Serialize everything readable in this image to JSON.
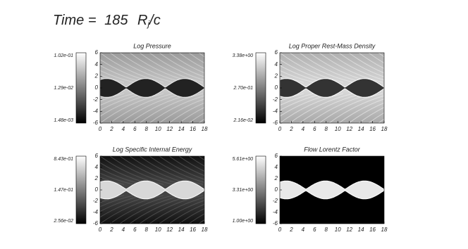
{
  "header": {
    "label": "Time =",
    "value": 185,
    "unit": "R",
    "unit_subscript": "j",
    "unit_suffix": "/c"
  },
  "panels": [
    {
      "title": "Log Pressure",
      "colorbar_labels": [
        "1.02e-01",
        "1.29e-02",
        "1.48e-03"
      ],
      "xticks": [
        0,
        2,
        4,
        6,
        8,
        10,
        12,
        14,
        16,
        18
      ],
      "yticks": [
        6,
        4,
        2,
        0,
        -2,
        -4,
        -6
      ]
    },
    {
      "title": "Log Proper Rest-Mass Density",
      "colorbar_labels": [
        "3.38e+00",
        "2.70e-01",
        "2.16e-02"
      ],
      "xticks": [
        0,
        2,
        4,
        6,
        8,
        10,
        12,
        14,
        16,
        18
      ],
      "yticks": [
        6,
        4,
        2,
        0,
        -2,
        -4,
        -6
      ]
    },
    {
      "title": "Log Specific Internal Energy",
      "colorbar_labels": [
        "8.43e-01",
        "1.47e-01",
        "2.56e-02"
      ],
      "xticks": [
        0,
        2,
        4,
        6,
        8,
        10,
        12,
        14,
        16,
        18
      ],
      "yticks": [
        6,
        4,
        2,
        0,
        -2,
        -4,
        -6
      ]
    },
    {
      "title": "Flow Lorentz Factor",
      "colorbar_labels": [
        "5.61e+00",
        "3.31e+00",
        "1.00e+00"
      ],
      "xticks": [
        0,
        2,
        4,
        6,
        8,
        10,
        12,
        14,
        16,
        18
      ],
      "yticks": [
        6,
        4,
        2,
        0,
        -2,
        -4,
        -6
      ]
    }
  ]
}
